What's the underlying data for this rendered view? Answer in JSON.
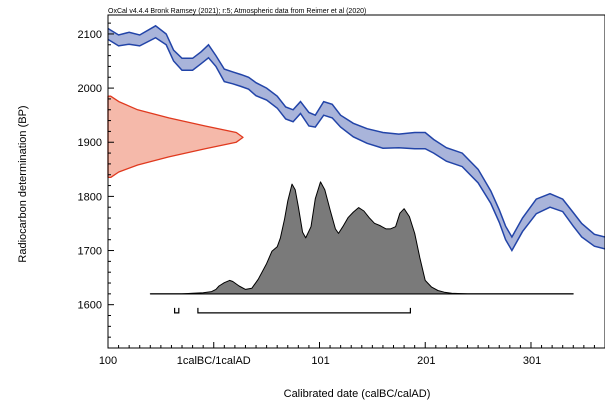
{
  "chart_data": {
    "type": "area",
    "title": "OxCal v4.4.4 Bronk Ramsey (2021); r:5; Atmospheric data from Reimer et al (2020)",
    "xlabel": "Calibrated date (calBC/calAD)",
    "ylabel": "Radiocarbon determination (BP)",
    "x_tick_labels": [
      "100",
      "1calBC/1calAD",
      "101",
      "201",
      "301"
    ],
    "x_tick_values": [
      -100,
      0,
      101,
      201,
      301
    ],
    "y_tick_values": [
      1600,
      1700,
      1800,
      1900,
      2000,
      2100
    ],
    "xlim": [
      -100,
      370
    ],
    "ylim": [
      1520,
      2135
    ],
    "colors": {
      "calibration_curve_fill": "#a9b4da",
      "calibration_curve_line": "#2244a8",
      "radiocarbon_fill": "#f5b9aa",
      "radiocarbon_line": "#e0391e",
      "posterior_fill": "#7a7a7a",
      "posterior_line": "#000000"
    },
    "calibration_curve": {
      "x": [
        -100,
        -90,
        -80,
        -70,
        -55,
        -45,
        -38,
        -30,
        -20,
        -12,
        -5,
        2,
        10,
        18,
        26,
        33,
        40,
        50,
        60,
        68,
        75,
        82,
        90,
        96,
        104,
        112,
        120,
        132,
        145,
        160,
        175,
        190,
        200,
        208,
        220,
        235,
        250,
        262,
        270,
        276,
        282,
        292,
        305,
        318,
        330,
        340,
        348,
        360,
        370
      ],
      "upper": [
        2110,
        2098,
        2103,
        2098,
        2115,
        2100,
        2070,
        2055,
        2055,
        2067,
        2080,
        2060,
        2035,
        2030,
        2025,
        2020,
        2010,
        2000,
        1985,
        1965,
        1960,
        1975,
        1955,
        1950,
        1975,
        1970,
        1950,
        1935,
        1925,
        1918,
        1915,
        1918,
        1918,
        1905,
        1890,
        1880,
        1850,
        1810,
        1775,
        1745,
        1725,
        1760,
        1795,
        1805,
        1795,
        1770,
        1750,
        1730,
        1725
      ],
      "lower": [
        2090,
        2078,
        2081,
        2078,
        2093,
        2080,
        2050,
        2033,
        2033,
        2045,
        2056,
        2040,
        2012,
        2008,
        2003,
        1998,
        1986,
        1978,
        1963,
        1943,
        1938,
        1953,
        1930,
        1928,
        1950,
        1945,
        1928,
        1910,
        1898,
        1889,
        1890,
        1888,
        1888,
        1880,
        1865,
        1855,
        1825,
        1787,
        1752,
        1720,
        1700,
        1735,
        1768,
        1780,
        1772,
        1745,
        1725,
        1708,
        1703
      ]
    },
    "radiocarbon_determination": {
      "bp": [
        1985,
        1975,
        1960,
        1945,
        1930,
        1918,
        1909,
        1900,
        1888,
        1873,
        1858,
        1845,
        1835
      ],
      "density": [
        0.02,
        0.08,
        0.22,
        0.45,
        0.72,
        0.95,
        1.0,
        0.95,
        0.72,
        0.45,
        0.22,
        0.08,
        0.02
      ]
    },
    "posterior_density": {
      "baseline_bp": 1620,
      "x": [
        -60,
        -30,
        -20,
        -10,
        -2,
        2,
        5,
        10,
        15,
        18,
        24,
        30,
        36,
        42,
        50,
        55,
        60,
        63,
        67,
        70,
        74,
        77,
        80,
        84,
        87,
        92,
        96,
        101,
        105,
        110,
        115,
        118,
        122,
        127,
        132,
        137,
        142,
        147,
        152,
        157,
        163,
        167,
        172,
        176,
        180,
        185,
        190,
        195,
        200,
        206,
        212,
        218,
        225,
        240,
        270,
        340
      ],
      "density": [
        0,
        0,
        0.005,
        0.01,
        0.02,
        0.04,
        0.07,
        0.1,
        0.12,
        0.11,
        0.07,
        0.04,
        0.05,
        0.13,
        0.27,
        0.38,
        0.42,
        0.5,
        0.67,
        0.83,
        0.98,
        0.93,
        0.78,
        0.55,
        0.5,
        0.6,
        0.85,
        1.0,
        0.93,
        0.75,
        0.58,
        0.54,
        0.6,
        0.68,
        0.73,
        0.77,
        0.74,
        0.68,
        0.63,
        0.61,
        0.58,
        0.58,
        0.6,
        0.72,
        0.76,
        0.69,
        0.54,
        0.32,
        0.12,
        0.06,
        0.03,
        0.015,
        0.005,
        0,
        0,
        0
      ]
    },
    "baseline_range_x": [
      -60,
      340
    ],
    "hpd_ranges": [
      [
        -37,
        -33
      ],
      [
        -15,
        186
      ]
    ]
  }
}
